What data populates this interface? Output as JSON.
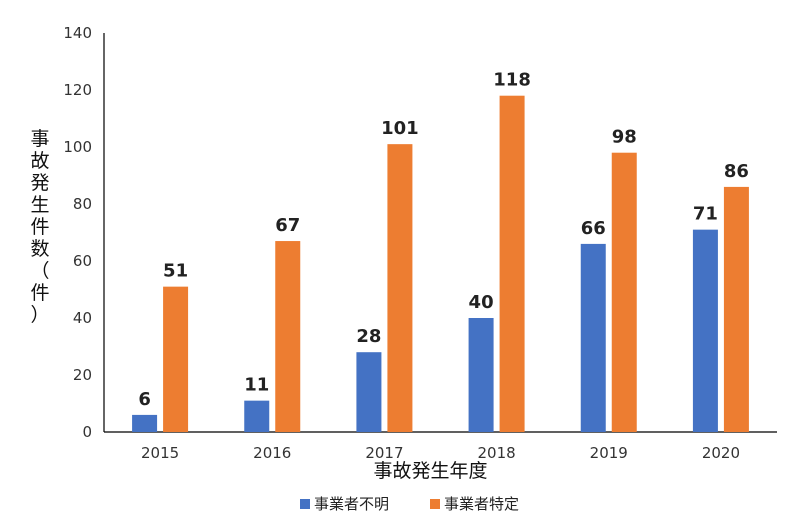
{
  "chart_data": {
    "type": "bar",
    "categories": [
      "2015",
      "2016",
      "2017",
      "2018",
      "2019",
      "2020"
    ],
    "series": [
      {
        "name": "事業者不明",
        "values": [
          6,
          11,
          28,
          40,
          66,
          71
        ],
        "color": "#4472C4"
      },
      {
        "name": "事業者特定",
        "values": [
          51,
          67,
          101,
          118,
          98,
          86
        ],
        "color": "#ED7D31"
      }
    ],
    "xlabel": "事故発生年度",
    "ylabel": "事故発生件数（件）",
    "ylim": [
      0,
      140
    ],
    "yticks": [
      0,
      20,
      40,
      60,
      80,
      100,
      120,
      140
    ],
    "grid": false,
    "legend_position": "bottom"
  }
}
